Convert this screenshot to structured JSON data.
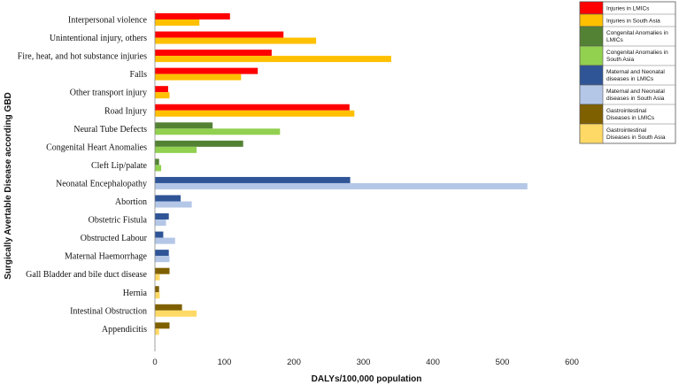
{
  "chart_data": {
    "type": "bar",
    "orientation": "horizontal",
    "xlabel": "DALYs/100,000 population",
    "ylabel": "Surgically Avertable Disease according GBD",
    "xlim": [
      0,
      600
    ],
    "xticks": [
      "0",
      "100",
      "200",
      "300",
      "400",
      "500",
      "600"
    ],
    "grid": false,
    "legend_position": "top-right",
    "colors": {
      "injuries_lmic": "#ff0000",
      "injuries_sa": "#ffc000",
      "congenital_lmic": "#548235",
      "congenital_sa": "#92d050",
      "maternal_lmic": "#2f5597",
      "maternal_sa": "#b4c7e7",
      "gastro_lmic": "#7f6000",
      "gastro_sa": "#ffd966"
    },
    "legend": [
      {
        "label": "Injuries in LMICs",
        "color": "#ff0000"
      },
      {
        "label": "Injuries in South Asia",
        "color": "#ffc000"
      },
      {
        "label": "Congenital Anomalies in LMICs",
        "color": "#548235"
      },
      {
        "label": "Congenital Anomalies in South Asia",
        "color": "#92d050"
      },
      {
        "label": "Maternal and Neonatal diseases in LMICs",
        "color": "#2f5597"
      },
      {
        "label": "Maternal and Neonatal diseases in South Asia",
        "color": "#b4c7e7"
      },
      {
        "label": "Gastrointestinal Diseases in LMICs",
        "color": "#7f6000"
      },
      {
        "label": "Gastrointestinal Diseases in South Asia",
        "color": "#ffd966"
      }
    ],
    "categories": [
      {
        "label": "Interpersonal violence",
        "lmic": 108,
        "south_asia": 64,
        "lmic_color": "#ff0000",
        "sa_color": "#ffc000"
      },
      {
        "label": "Unintentional injury, others",
        "lmic": 185,
        "south_asia": 232,
        "lmic_color": "#ff0000",
        "sa_color": "#ffc000"
      },
      {
        "label": "Fire, heat, and hot substance injuries",
        "lmic": 168,
        "south_asia": 340,
        "lmic_color": "#ff0000",
        "sa_color": "#ffc000"
      },
      {
        "label": "Falls",
        "lmic": 148,
        "south_asia": 124,
        "lmic_color": "#ff0000",
        "sa_color": "#ffc000"
      },
      {
        "label": "Other transport injury",
        "lmic": 19,
        "south_asia": 21,
        "lmic_color": "#ff0000",
        "sa_color": "#ffc000"
      },
      {
        "label": "Road Injury",
        "lmic": 280,
        "south_asia": 287,
        "lmic_color": "#ff0000",
        "sa_color": "#ffc000"
      },
      {
        "label": "Neural Tube Defects",
        "lmic": 83,
        "south_asia": 180,
        "lmic_color": "#548235",
        "sa_color": "#92d050"
      },
      {
        "label": "Congenital Heart Anomalies",
        "lmic": 127,
        "south_asia": 60,
        "lmic_color": "#548235",
        "sa_color": "#92d050"
      },
      {
        "label": "Cleft Lip/palate",
        "lmic": 6,
        "south_asia": 9,
        "lmic_color": "#548235",
        "sa_color": "#92d050"
      },
      {
        "label": "Neonatal Encephalopathy",
        "lmic": 281,
        "south_asia": 536,
        "lmic_color": "#2f5597",
        "sa_color": "#b4c7e7"
      },
      {
        "label": "Abortion",
        "lmic": 37,
        "south_asia": 53,
        "lmic_color": "#2f5597",
        "sa_color": "#b4c7e7"
      },
      {
        "label": "Obstetric Fistula",
        "lmic": 20,
        "south_asia": 16,
        "lmic_color": "#2f5597",
        "sa_color": "#b4c7e7"
      },
      {
        "label": "Obstructed Labour",
        "lmic": 12,
        "south_asia": 29,
        "lmic_color": "#2f5597",
        "sa_color": "#b4c7e7"
      },
      {
        "label": "Maternal Haemorrhage",
        "lmic": 20,
        "south_asia": 21,
        "lmic_color": "#2f5597",
        "sa_color": "#b4c7e7"
      },
      {
        "label": "Gall Bladder and bile duct disease",
        "lmic": 21,
        "south_asia": 7,
        "lmic_color": "#7f6000",
        "sa_color": "#ffd966"
      },
      {
        "label": "Hernia",
        "lmic": 6,
        "south_asia": 7,
        "lmic_color": "#7f6000",
        "sa_color": "#ffd966"
      },
      {
        "label": "Intestinal Obstruction",
        "lmic": 39,
        "south_asia": 60,
        "lmic_color": "#7f6000",
        "sa_color": "#ffd966"
      },
      {
        "label": "Appendicitis",
        "lmic": 21,
        "south_asia": 6,
        "lmic_color": "#7f6000",
        "sa_color": "#ffd966"
      }
    ]
  }
}
